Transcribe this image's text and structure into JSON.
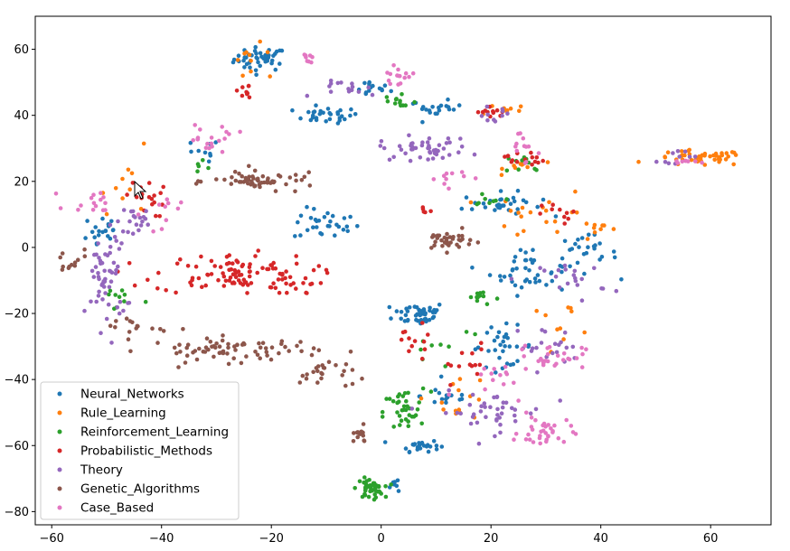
{
  "chart_data": {
    "type": "scatter",
    "title": "",
    "xlabel": "",
    "ylabel": "",
    "xlim": [
      -63,
      71
    ],
    "ylim": [
      -84,
      70
    ],
    "x_ticks": [
      -60,
      -40,
      -20,
      0,
      20,
      40,
      60
    ],
    "y_ticks": [
      -80,
      -60,
      -40,
      -20,
      0,
      20,
      40,
      60
    ],
    "x_tick_labels": [
      "−60",
      "−40",
      "−20",
      "0",
      "20",
      "40",
      "60"
    ],
    "y_tick_labels": [
      "−80",
      "−60",
      "−40",
      "−20",
      "0",
      "20",
      "40",
      "60"
    ],
    "grid": false,
    "legend_position": "lower-left",
    "series": [
      {
        "name": "Neural_Networks",
        "color": "#1f77b4",
        "clusters": [
          {
            "center": [
              -22,
              57
            ],
            "spread": [
              4,
              3
            ],
            "count": 45
          },
          {
            "center": [
              -10,
              40
            ],
            "spread": [
              5,
              2
            ],
            "count": 30
          },
          {
            "center": [
              -2,
              48
            ],
            "spread": [
              3,
              2
            ],
            "count": 15
          },
          {
            "center": [
              -10,
              7
            ],
            "spread": [
              5,
              4
            ],
            "count": 30
          },
          {
            "center": [
              7,
              -20
            ],
            "spread": [
              4,
              3
            ],
            "count": 45
          },
          {
            "center": [
              7,
              -60
            ],
            "spread": [
              3,
              1.5
            ],
            "count": 25
          },
          {
            "center": [
              22,
              13
            ],
            "spread": [
              6,
              3
            ],
            "count": 30
          },
          {
            "center": [
              27,
              -7
            ],
            "spread": [
              6,
              6
            ],
            "count": 40
          },
          {
            "center": [
              10,
              42
            ],
            "spread": [
              4,
              2
            ],
            "count": 20
          },
          {
            "center": [
              22,
              -30
            ],
            "spread": [
              5,
              5
            ],
            "count": 30
          },
          {
            "center": [
              37,
              -2
            ],
            "spread": [
              5,
              5
            ],
            "count": 25
          },
          {
            "center": [
              -51,
              5
            ],
            "spread": [
              3,
              6
            ],
            "count": 20
          },
          {
            "center": [
              12,
              -45
            ],
            "spread": [
              4,
              3
            ],
            "count": 15
          },
          {
            "center": [
              3,
              -72
            ],
            "spread": [
              2,
              2
            ],
            "count": 8
          },
          {
            "center": [
              -33,
              29
            ],
            "spread": [
              3,
              3
            ],
            "count": 10
          }
        ]
      },
      {
        "name": "Rule_Learning",
        "color": "#ff7f0e",
        "clusters": [
          {
            "center": [
              58,
              27
            ],
            "spread": [
              7,
              2
            ],
            "count": 45
          },
          {
            "center": [
              -23,
              55
            ],
            "spread": [
              5,
              5
            ],
            "count": 10
          },
          {
            "center": [
              26,
              25
            ],
            "spread": [
              3,
              2
            ],
            "count": 10
          },
          {
            "center": [
              30,
              10
            ],
            "spread": [
              8,
              6
            ],
            "count": 20
          },
          {
            "center": [
              14,
              -45
            ],
            "spread": [
              5,
              6
            ],
            "count": 15
          },
          {
            "center": [
              -45,
              20
            ],
            "spread": [
              5,
              8
            ],
            "count": 10
          },
          {
            "center": [
              40,
              5
            ],
            "spread": [
              3,
              2
            ],
            "count": 8
          },
          {
            "center": [
              22,
              42
            ],
            "spread": [
              4,
              2
            ],
            "count": 8
          },
          {
            "center": [
              33,
              -22
            ],
            "spread": [
              6,
              4
            ],
            "count": 10
          }
        ]
      },
      {
        "name": "Reinforcement_Learning",
        "color": "#2ca02c",
        "clusters": [
          {
            "center": [
              -2,
              -73
            ],
            "spread": [
              2,
              2.5
            ],
            "count": 45
          },
          {
            "center": [
              4,
              -50
            ],
            "spread": [
              3,
              6
            ],
            "count": 35
          },
          {
            "center": [
              18,
              -15
            ],
            "spread": [
              3,
              2
            ],
            "count": 12
          },
          {
            "center": [
              3,
              44
            ],
            "spread": [
              3,
              3
            ],
            "count": 12
          },
          {
            "center": [
              27,
              25
            ],
            "spread": [
              4,
              3
            ],
            "count": 10
          },
          {
            "center": [
              -48,
              -15
            ],
            "spread": [
              4,
              4
            ],
            "count": 10
          },
          {
            "center": [
              20,
              15
            ],
            "spread": [
              3,
              2
            ],
            "count": 8
          },
          {
            "center": [
              10,
              -30
            ],
            "spread": [
              8,
              8
            ],
            "count": 10
          },
          {
            "center": [
              -32,
              25
            ],
            "spread": [
              2,
              2
            ],
            "count": 5
          }
        ]
      },
      {
        "name": "Probabilistic_Methods",
        "color": "#d62728",
        "clusters": [
          {
            "center": [
              -27,
              -8
            ],
            "spread": [
              12,
              5
            ],
            "count": 100
          },
          {
            "center": [
              -43,
              15
            ],
            "spread": [
              3,
              5
            ],
            "count": 20
          },
          {
            "center": [
              -15,
              -12
            ],
            "spread": [
              3,
              2
            ],
            "count": 10
          },
          {
            "center": [
              20,
              41
            ],
            "spread": [
              2,
              1.5
            ],
            "count": 12
          },
          {
            "center": [
              26,
              27
            ],
            "spread": [
              3,
              2
            ],
            "count": 15
          },
          {
            "center": [
              14,
              -35
            ],
            "spread": [
              5,
              5
            ],
            "count": 15
          },
          {
            "center": [
              -25,
              47
            ],
            "spread": [
              3,
              3
            ],
            "count": 10
          },
          {
            "center": [
              6,
              -28
            ],
            "spread": [
              3,
              4
            ],
            "count": 10
          },
          {
            "center": [
              33,
              10
            ],
            "spread": [
              3,
              3
            ],
            "count": 10
          },
          {
            "center": [
              8,
              11
            ],
            "spread": [
              1,
              1
            ],
            "count": 5
          }
        ]
      },
      {
        "name": "Theory",
        "color": "#9467bd",
        "clusters": [
          {
            "center": [
              -50,
              -10
            ],
            "spread": [
              3,
              12
            ],
            "count": 55
          },
          {
            "center": [
              8,
              30
            ],
            "spread": [
              7,
              3
            ],
            "count": 45
          },
          {
            "center": [
              20,
              -50
            ],
            "spread": [
              8,
              5
            ],
            "count": 40
          },
          {
            "center": [
              30,
              -30
            ],
            "spread": [
              5,
              5
            ],
            "count": 20
          },
          {
            "center": [
              -44,
              8
            ],
            "spread": [
              4,
              4
            ],
            "count": 20
          },
          {
            "center": [
              -5,
              48
            ],
            "spread": [
              5,
              2
            ],
            "count": 15
          },
          {
            "center": [
              35,
              -10
            ],
            "spread": [
              5,
              5
            ],
            "count": 20
          },
          {
            "center": [
              54,
              28
            ],
            "spread": [
              3,
              2
            ],
            "count": 10
          },
          {
            "center": [
              20,
              40
            ],
            "spread": [
              3,
              2
            ],
            "count": 10
          }
        ]
      },
      {
        "name": "Genetic_Algorithms",
        "color": "#8c564b",
        "clusters": [
          {
            "center": [
              -27,
              -31
            ],
            "spread": [
              13,
              3
            ],
            "count": 70
          },
          {
            "center": [
              -10,
              -38
            ],
            "spread": [
              4,
              4
            ],
            "count": 25
          },
          {
            "center": [
              12,
              2
            ],
            "spread": [
              4,
              2.5
            ],
            "count": 35
          },
          {
            "center": [
              -21,
              20
            ],
            "spread": [
              8,
              2
            ],
            "count": 45
          },
          {
            "center": [
              -4,
              -57
            ],
            "spread": [
              1.5,
              2
            ],
            "count": 15
          },
          {
            "center": [
              -57,
              -5
            ],
            "spread": [
              3,
              4
            ],
            "count": 12
          },
          {
            "center": [
              -45,
              -24
            ],
            "spread": [
              5,
              3
            ],
            "count": 15
          },
          {
            "center": [
              -25,
              20
            ],
            "spread": [
              5,
              3
            ],
            "count": 10
          }
        ]
      },
      {
        "name": "Case_Based",
        "color": "#e377c2",
        "clusters": [
          {
            "center": [
              30,
              -56
            ],
            "spread": [
              4,
              4
            ],
            "count": 35
          },
          {
            "center": [
              3,
              52
            ],
            "spread": [
              2.5,
              2
            ],
            "count": 15
          },
          {
            "center": [
              -31,
              33
            ],
            "spread": [
              4,
              4
            ],
            "count": 18
          },
          {
            "center": [
              -52,
              14
            ],
            "spread": [
              4,
              3
            ],
            "count": 15
          },
          {
            "center": [
              31,
              -33
            ],
            "spread": [
              5,
              3
            ],
            "count": 25
          },
          {
            "center": [
              -13,
              58
            ],
            "spread": [
              1,
              3
            ],
            "count": 8
          },
          {
            "center": [
              26,
              30
            ],
            "spread": [
              3,
              5
            ],
            "count": 12
          },
          {
            "center": [
              12,
              22
            ],
            "spread": [
              4,
              3
            ],
            "count": 10
          },
          {
            "center": [
              20,
              -40
            ],
            "spread": [
              5,
              5
            ],
            "count": 15
          },
          {
            "center": [
              -40,
              10
            ],
            "spread": [
              3,
              5
            ],
            "count": 10
          },
          {
            "center": [
              55,
              26
            ],
            "spread": [
              2,
              2
            ],
            "count": 8
          }
        ]
      }
    ]
  }
}
